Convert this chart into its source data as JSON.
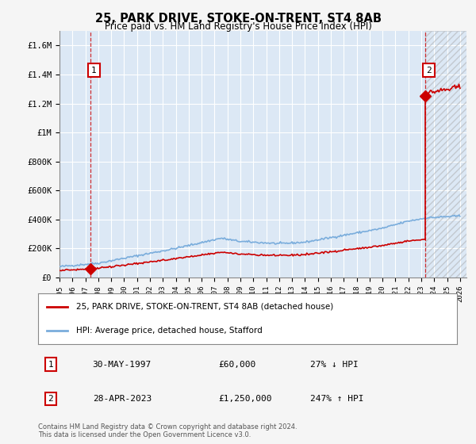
{
  "title": "25, PARK DRIVE, STOKE-ON-TRENT, ST4 8AB",
  "subtitle": "Price paid vs. HM Land Registry's House Price Index (HPI)",
  "legend_label_red": "25, PARK DRIVE, STOKE-ON-TRENT, ST4 8AB (detached house)",
  "legend_label_blue": "HPI: Average price, detached house, Stafford",
  "annotation1_date": "30-MAY-1997",
  "annotation1_price": "£60,000",
  "annotation1_hpi": "27% ↓ HPI",
  "annotation2_date": "28-APR-2023",
  "annotation2_price": "£1,250,000",
  "annotation2_hpi": "247% ↑ HPI",
  "footer": "Contains HM Land Registry data © Crown copyright and database right 2024.\nThis data is licensed under the Open Government Licence v3.0.",
  "sale1_year": 1997.41,
  "sale1_price": 60000,
  "sale2_year": 2023.32,
  "sale2_price": 1250000,
  "hpi_color": "#7aaddc",
  "sale_color": "#cc0000",
  "background_color": "#f5f5f5",
  "plot_bg_color": "#dce8f5",
  "grid_color": "#ffffff",
  "ylim_max": 1700000,
  "xmin": 1995.0,
  "xmax": 2026.5
}
